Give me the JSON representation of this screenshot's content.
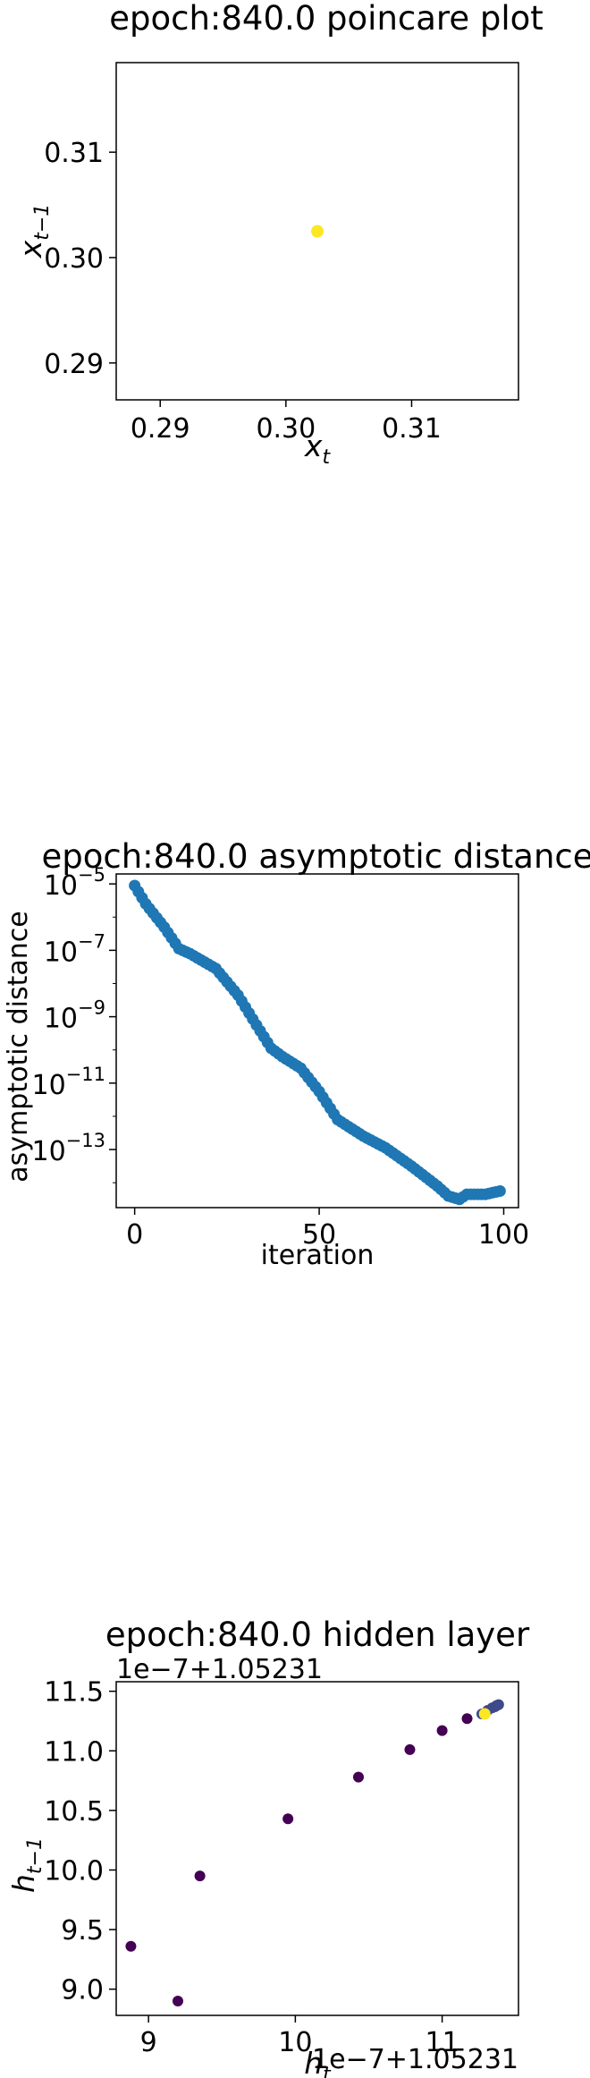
{
  "chart_data": [
    {
      "type": "scatter",
      "title": "epoch:840.0 poincare plot",
      "xlabel": "x_t",
      "ylabel": "x_{t−1}",
      "xlim": [
        0.2865,
        0.3185
      ],
      "ylim": [
        0.2865,
        0.3185
      ],
      "xticks": [
        0.29,
        0.3,
        0.31
      ],
      "yticks": [
        0.29,
        0.3,
        0.31
      ],
      "tick_labels": [
        "0.29",
        "0.30",
        "0.31"
      ],
      "grid": false,
      "point_color": "#fde725",
      "points": [
        [
          0.3025,
          0.3025
        ]
      ]
    },
    {
      "type": "scatter",
      "title": "epoch:840.0 asymptotic distance",
      "xlabel": "iteration",
      "ylabel": "asymptotic distance",
      "yscale": "log",
      "xlim": [
        -5,
        104
      ],
      "ylim_exp": [
        -14.75,
        -4.7
      ],
      "xticks": [
        0,
        50,
        100
      ],
      "xtick_labels": [
        "0",
        "50",
        "100"
      ],
      "yticks_exp": [
        -5,
        -7,
        -9,
        -11,
        -13
      ],
      "grid": false,
      "point_color": "#1f77b4",
      "anchors_log10": [
        [
          0,
          -5.05
        ],
        [
          3,
          -5.6
        ],
        [
          8,
          -6.3
        ],
        [
          12,
          -6.95
        ],
        [
          15,
          -7.1
        ],
        [
          22,
          -7.55
        ],
        [
          28,
          -8.35
        ],
        [
          33,
          -9.25
        ],
        [
          37,
          -9.95
        ],
        [
          40,
          -10.2
        ],
        [
          45,
          -10.55
        ],
        [
          50,
          -11.25
        ],
        [
          55,
          -12.1
        ],
        [
          62,
          -12.6
        ],
        [
          68,
          -12.95
        ],
        [
          75,
          -13.5
        ],
        [
          82,
          -14.1
        ],
        [
          85,
          -14.4
        ],
        [
          88,
          -14.5
        ],
        [
          90,
          -14.35
        ],
        [
          95,
          -14.35
        ],
        [
          99,
          -14.25
        ]
      ]
    },
    {
      "type": "scatter",
      "title": "epoch:840.0 hidden layer",
      "xlabel": "h_t",
      "ylabel": "h_{t−1}",
      "offset_label": "1e−7+1.05231",
      "xlim": [
        8.78,
        11.52
      ],
      "ylim": [
        8.78,
        11.58
      ],
      "xticks": [
        9,
        10,
        11
      ],
      "xtick_labels": [
        "9",
        "10",
        "11"
      ],
      "yticks": [
        9.0,
        9.5,
        10.0,
        10.5,
        11.0,
        11.5
      ],
      "ytick_labels": [
        "9.0",
        "9.5",
        "10.0",
        "10.5",
        "11.0",
        "11.5"
      ],
      "grid": false,
      "colors": {
        "early": "#440154",
        "cluster": "#3e4a89",
        "last": "#fde725"
      },
      "points": [
        [
          9.2,
          8.9
        ],
        [
          8.88,
          9.36
        ],
        [
          9.35,
          9.95
        ],
        [
          9.95,
          10.43
        ],
        [
          10.43,
          10.78
        ],
        [
          10.78,
          11.01
        ],
        [
          11.0,
          11.17
        ],
        [
          11.17,
          11.27
        ],
        [
          11.27,
          11.31
        ],
        [
          11.31,
          11.34
        ],
        [
          11.34,
          11.36
        ],
        [
          11.36,
          11.37
        ],
        [
          11.37,
          11.38
        ],
        [
          11.38,
          11.385
        ],
        [
          11.385,
          11.388
        ]
      ],
      "last_point": [
        11.29,
        11.31
      ]
    }
  ]
}
